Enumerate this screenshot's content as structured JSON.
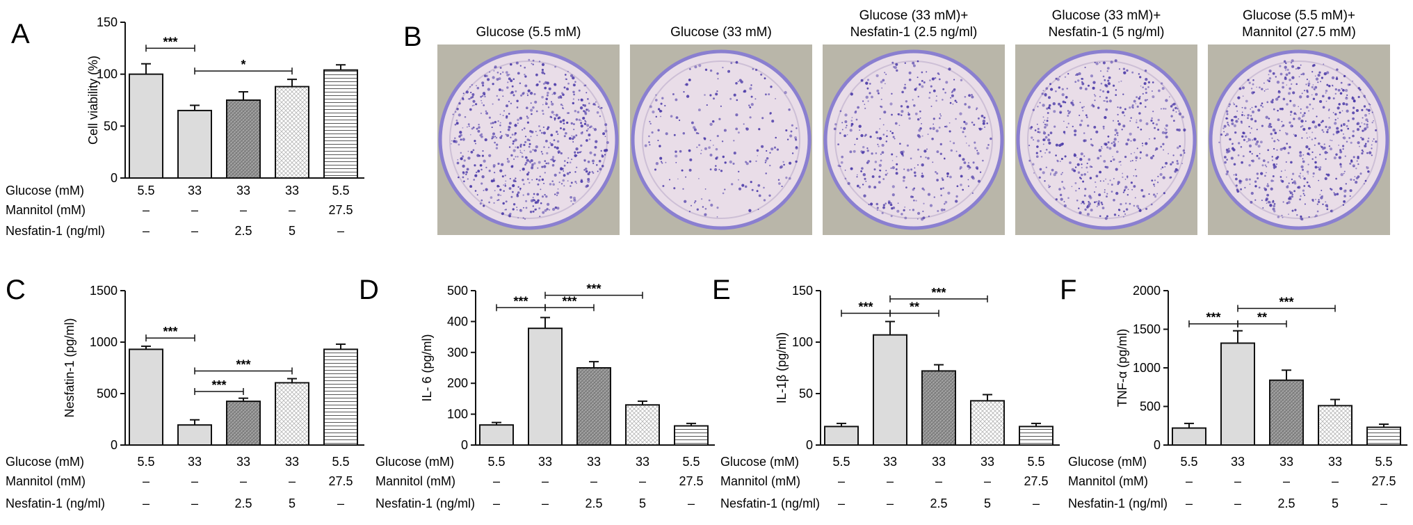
{
  "colors": {
    "bar_plain": "#dcdcdc",
    "bar_dark_hatch": "#9a9a9a",
    "bar_light_hatch": "#ffffff",
    "axis": "#111111",
    "plate_background": "#b9b6a9",
    "dish_rim": "#8a7fd0",
    "dish_fill": "#e9dde8",
    "colony": "#4b3aa8"
  },
  "panels": {
    "A": "A",
    "B": "B",
    "C": "C",
    "D": "D",
    "E": "E",
    "F": "F"
  },
  "plates": [
    {
      "line1": "Glucose (5.5 mM)",
      "line2": ""
    },
    {
      "line1": "Glucose (33 mM)",
      "line2": ""
    },
    {
      "line1": "Glucose (33 mM)+",
      "line2": "Nesfatin-1 (2.5 ng/ml)"
    },
    {
      "line1": "Glucose (33 mM)+",
      "line2": "Nesfatin-1 (5 ng/ml)"
    },
    {
      "line1": "Glucose (5.5 mM)+",
      "line2": "Mannitol (27.5 mM)"
    }
  ],
  "plate_density": [
    1.0,
    0.35,
    0.6,
    0.8,
    1.0
  ],
  "condition_rows": [
    {
      "label": "Glucose (mM)",
      "values": [
        "5.5",
        "33",
        "33",
        "33",
        "5.5"
      ]
    },
    {
      "label": "Mannitol (mM)",
      "values": [
        "–",
        "–",
        "–",
        "–",
        "27.5"
      ]
    },
    {
      "label": "Nesfatin-1 (ng/ml)",
      "values": [
        "–",
        "–",
        "2.5",
        "5",
        "–"
      ]
    }
  ],
  "chart_data": [
    {
      "panel": "A",
      "type": "bar",
      "ylabel": "Cell viability (%)",
      "ylim": [
        0,
        150
      ],
      "yticks": [
        0,
        50,
        100,
        150
      ],
      "values": [
        100,
        65,
        75,
        88,
        104
      ],
      "errors": [
        10,
        5,
        8,
        7,
        5
      ],
      "fills": [
        "plain",
        "plain",
        "dark",
        "light",
        "hstripe"
      ],
      "significance": [
        {
          "from": 0,
          "to": 1,
          "y": 125,
          "label": "***"
        },
        {
          "from": 1,
          "to": 3,
          "y": 103,
          "label": "*"
        }
      ]
    },
    {
      "panel": "C",
      "type": "bar",
      "ylabel": "Nesfatin-1 (pg/ml)",
      "ylim": [
        0,
        1500
      ],
      "yticks": [
        0,
        500,
        1000,
        1500
      ],
      "values": [
        930,
        195,
        425,
        605,
        930
      ],
      "errors": [
        30,
        50,
        30,
        40,
        50
      ],
      "fills": [
        "plain",
        "plain",
        "dark",
        "light",
        "hstripe"
      ],
      "significance": [
        {
          "from": 0,
          "to": 1,
          "y": 1040,
          "label": "***"
        },
        {
          "from": 1,
          "to": 3,
          "y": 720,
          "label": "***"
        },
        {
          "from": 1,
          "to": 2,
          "y": 520,
          "label": "***"
        }
      ]
    },
    {
      "panel": "D",
      "type": "bar",
      "ylabel": "IL- 6 (pg/ml)",
      "ylim": [
        0,
        500
      ],
      "yticks": [
        0,
        100,
        200,
        300,
        400,
        500
      ],
      "values": [
        65,
        378,
        250,
        130,
        62
      ],
      "errors": [
        8,
        35,
        20,
        12,
        8
      ],
      "fills": [
        "plain",
        "plain",
        "dark",
        "light",
        "hstripe"
      ],
      "significance": [
        {
          "from": 0,
          "to": 1,
          "y": 445,
          "label": "***"
        },
        {
          "from": 1,
          "to": 2,
          "y": 445,
          "label": "***"
        },
        {
          "from": 1,
          "to": 3,
          "y": 485,
          "label": "***"
        }
      ]
    },
    {
      "panel": "E",
      "type": "bar",
      "ylabel": "IL-1β (pg/ml)",
      "ylim": [
        0,
        150
      ],
      "yticks": [
        0,
        50,
        100,
        150
      ],
      "values": [
        18,
        107,
        72,
        43,
        18
      ],
      "errors": [
        3,
        13,
        6,
        6,
        3
      ],
      "fills": [
        "plain",
        "plain",
        "dark",
        "light",
        "hstripe"
      ],
      "significance": [
        {
          "from": 0,
          "to": 1,
          "y": 128,
          "label": "***"
        },
        {
          "from": 1,
          "to": 2,
          "y": 128,
          "label": "**"
        },
        {
          "from": 1,
          "to": 3,
          "y": 142,
          "label": "***"
        }
      ]
    },
    {
      "panel": "F",
      "type": "bar",
      "ylabel": "TNF-α (pg/ml)",
      "ylim": [
        0,
        2000
      ],
      "yticks": [
        0,
        500,
        1000,
        1500,
        2000
      ],
      "values": [
        220,
        1320,
        840,
        510,
        230
      ],
      "errors": [
        60,
        160,
        130,
        80,
        40
      ],
      "fills": [
        "plain",
        "plain",
        "dark",
        "light",
        "hstripe"
      ],
      "significance": [
        {
          "from": 0,
          "to": 1,
          "y": 1570,
          "label": "***"
        },
        {
          "from": 1,
          "to": 2,
          "y": 1570,
          "label": "**"
        },
        {
          "from": 1,
          "to": 3,
          "y": 1770,
          "label": "***"
        }
      ]
    }
  ]
}
